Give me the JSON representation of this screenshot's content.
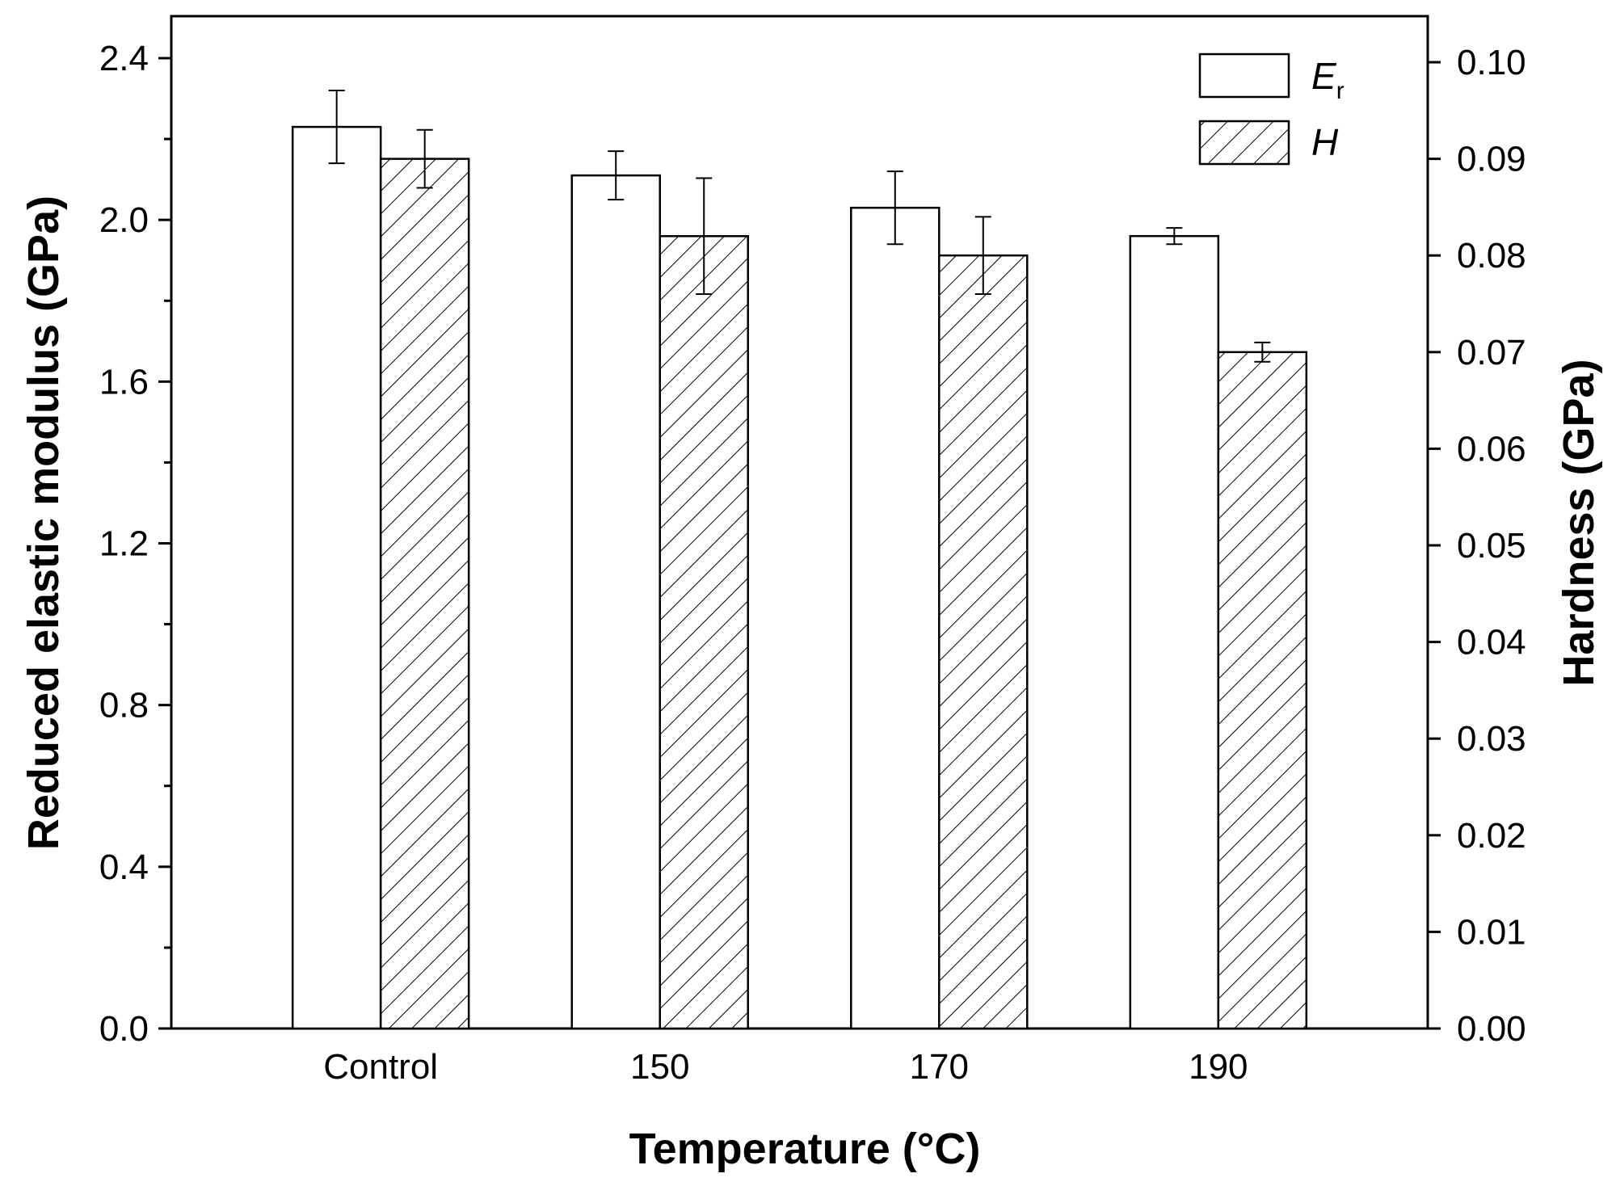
{
  "chart_data": {
    "type": "bar",
    "categories": [
      "Control",
      "150",
      "170",
      "190"
    ],
    "xlabel": "Temperature (°C)",
    "ylabel_left": "Reduced elastic modulus (GPa)",
    "ylabel_right": "Hardness (GPa)",
    "ylim_left": [
      0,
      2.4
    ],
    "ylim_right": [
      0,
      0.1
    ],
    "yticks_left": [
      "0.0",
      "0.4",
      "0.8",
      "1.2",
      "1.6",
      "2.0",
      "2.4"
    ],
    "yticks_right": [
      "0.00",
      "0.01",
      "0.02",
      "0.03",
      "0.04",
      "0.05",
      "0.06",
      "0.07",
      "0.08",
      "0.09",
      "0.10"
    ],
    "series": [
      {
        "name": "E",
        "subscript": "r",
        "axis": "left",
        "fill": "white",
        "values": [
          2.23,
          2.11,
          2.03,
          1.96
        ],
        "errors": [
          0.09,
          0.06,
          0.09,
          0.02
        ]
      },
      {
        "name": "H",
        "subscript": "",
        "axis": "right",
        "fill": "hatched",
        "values": [
          0.09,
          0.082,
          0.08,
          0.07
        ],
        "errors": [
          0.003,
          0.006,
          0.004,
          0.001
        ]
      }
    ],
    "legend_position": "top-right"
  }
}
